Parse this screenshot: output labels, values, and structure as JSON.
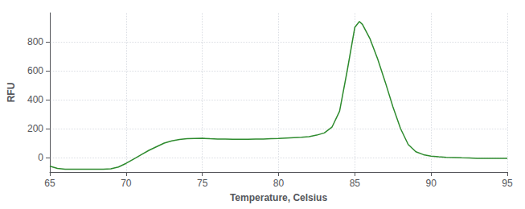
{
  "chart_data": {
    "type": "line",
    "xlabel": "Temperature, Celsius",
    "ylabel": "RFU",
    "color": "#2e8b2e",
    "grid": true,
    "xlim": [
      65,
      95
    ],
    "ylim": [
      -100,
      1000
    ],
    "xticks": [
      65,
      70,
      75,
      80,
      85,
      90,
      95
    ],
    "yticks": [
      0,
      200,
      400,
      600,
      800
    ],
    "x": [
      65.0,
      65.5,
      66.0,
      66.5,
      67.0,
      67.5,
      68.0,
      68.5,
      69.0,
      69.5,
      70.0,
      70.5,
      71.0,
      71.5,
      72.0,
      72.5,
      73.0,
      73.5,
      74.0,
      74.5,
      75.0,
      75.5,
      76.0,
      76.5,
      77.0,
      77.5,
      78.0,
      78.5,
      79.0,
      79.5,
      80.0,
      80.5,
      81.0,
      81.5,
      82.0,
      82.5,
      83.0,
      83.5,
      84.0,
      84.5,
      85.0,
      85.3,
      85.5,
      86.0,
      86.5,
      87.0,
      87.5,
      88.0,
      88.5,
      89.0,
      89.5,
      90.0,
      90.5,
      91.0,
      91.5,
      92.0,
      92.5,
      93.0,
      93.5,
      94.0,
      94.5,
      95.0
    ],
    "values": [
      -60,
      -75,
      -80,
      -80,
      -80,
      -80,
      -80,
      -80,
      -78,
      -65,
      -40,
      -10,
      20,
      50,
      75,
      100,
      115,
      125,
      130,
      132,
      133,
      130,
      128,
      128,
      127,
      127,
      127,
      128,
      128,
      130,
      132,
      135,
      138,
      140,
      145,
      155,
      170,
      210,
      320,
      600,
      900,
      940,
      920,
      820,
      680,
      520,
      350,
      200,
      90,
      40,
      20,
      10,
      5,
      2,
      0,
      -2,
      -3,
      -5,
      -5,
      -5,
      -5,
      -5
    ]
  }
}
